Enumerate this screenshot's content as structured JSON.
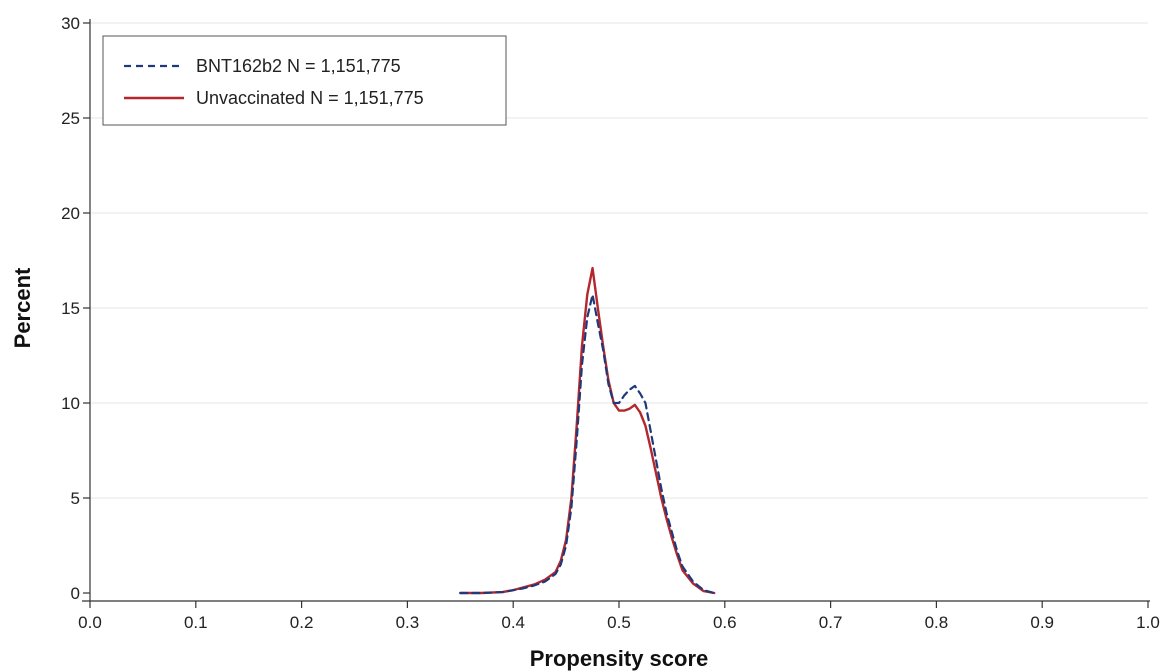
{
  "chart_data": {
    "type": "line",
    "title": "",
    "xlabel": "Propensity score",
    "ylabel": "Percent",
    "xlim": [
      0.0,
      1.0
    ],
    "ylim": [
      0,
      30
    ],
    "grid": "horizontal",
    "legend_position": "top-left",
    "x_ticks": [
      "0.0",
      "0.1",
      "0.2",
      "0.3",
      "0.4",
      "0.5",
      "0.6",
      "0.7",
      "0.8",
      "0.9",
      "1.0"
    ],
    "y_ticks": [
      "0",
      "5",
      "10",
      "15",
      "20",
      "25",
      "30"
    ],
    "series": [
      {
        "name": "BNT162b2 N = 1,151,775",
        "color": "#1f3a7a",
        "style": "dashed",
        "x": [
          0.35,
          0.37,
          0.39,
          0.4,
          0.41,
          0.42,
          0.43,
          0.44,
          0.445,
          0.45,
          0.455,
          0.46,
          0.465,
          0.47,
          0.475,
          0.48,
          0.485,
          0.49,
          0.495,
          0.5,
          0.505,
          0.51,
          0.515,
          0.52,
          0.525,
          0.53,
          0.535,
          0.54,
          0.545,
          0.55,
          0.555,
          0.56,
          0.57,
          0.58,
          0.59
        ],
        "values": [
          0.0,
          0.0,
          0.05,
          0.15,
          0.25,
          0.4,
          0.6,
          1.0,
          1.5,
          2.5,
          4.5,
          8.0,
          12.0,
          14.5,
          15.7,
          14.2,
          12.8,
          11.0,
          10.0,
          10.0,
          10.4,
          10.7,
          10.9,
          10.5,
          10.0,
          8.5,
          7.0,
          5.5,
          4.2,
          3.2,
          2.2,
          1.4,
          0.6,
          0.15,
          0.0
        ]
      },
      {
        "name": "Unvaccinated N = 1,151,775",
        "color": "#b3272d",
        "style": "solid",
        "x": [
          0.35,
          0.37,
          0.39,
          0.4,
          0.41,
          0.42,
          0.43,
          0.44,
          0.445,
          0.45,
          0.455,
          0.46,
          0.465,
          0.47,
          0.475,
          0.48,
          0.485,
          0.49,
          0.495,
          0.5,
          0.505,
          0.51,
          0.515,
          0.52,
          0.525,
          0.53,
          0.535,
          0.54,
          0.545,
          0.55,
          0.555,
          0.56,
          0.57,
          0.58,
          0.59
        ],
        "values": [
          0.0,
          0.0,
          0.05,
          0.15,
          0.3,
          0.45,
          0.7,
          1.1,
          1.7,
          2.8,
          5.0,
          8.8,
          13.0,
          15.7,
          17.1,
          15.0,
          13.0,
          11.2,
          10.0,
          9.6,
          9.6,
          9.7,
          9.9,
          9.5,
          8.8,
          7.6,
          6.3,
          5.0,
          3.9,
          2.9,
          2.0,
          1.2,
          0.5,
          0.1,
          0.0
        ]
      }
    ]
  }
}
